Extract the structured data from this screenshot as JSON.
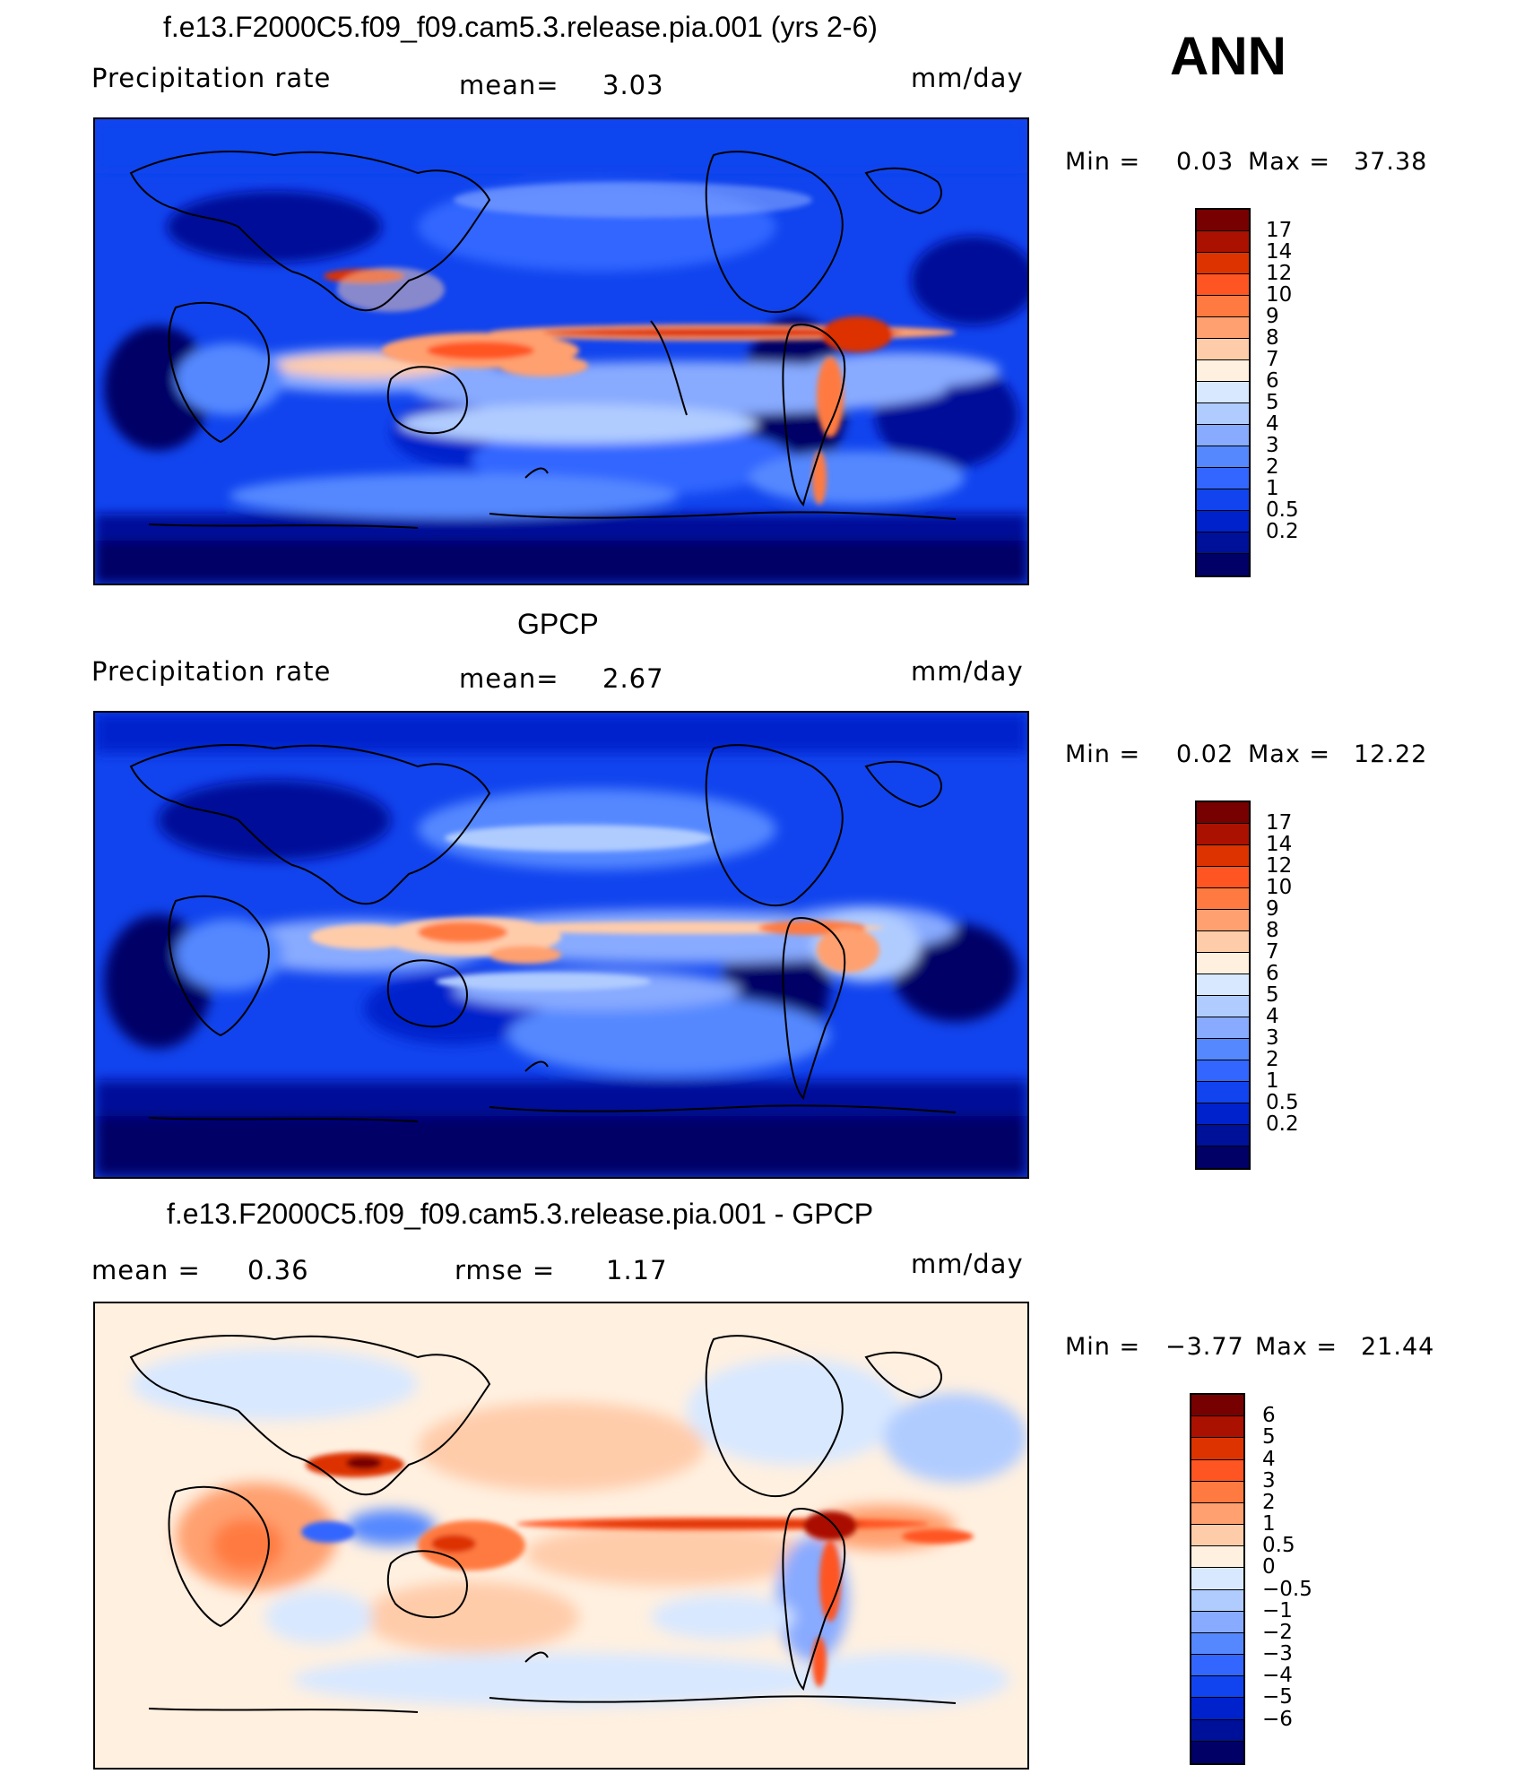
{
  "season": "ANN",
  "panels": [
    {
      "title": "f.e13.F2000C5.f09_f09.cam5.3.release.pia.001 (yrs 2-6)",
      "left_label": "Precipitation  rate",
      "center_label": "mean=",
      "center_value": "3.03",
      "right_label": "mm/day",
      "min_label": "Min  =",
      "min_value": "0.03",
      "max_label": "Max  =",
      "max_value": "37.38",
      "colorbar_labels": [
        "17",
        "14",
        "12",
        "10",
        "9",
        "8",
        "7",
        "6",
        "5",
        "4",
        "3",
        "2",
        "1",
        "0.5",
        "0.2"
      ]
    },
    {
      "title": "GPCP",
      "left_label": "Precipitation  rate",
      "center_label": "mean=",
      "center_value": "2.67",
      "right_label": "mm/day",
      "min_label": "Min  =",
      "min_value": "0.02",
      "max_label": "Max  =",
      "max_value": "12.22",
      "colorbar_labels": [
        "17",
        "14",
        "12",
        "10",
        "9",
        "8",
        "7",
        "6",
        "5",
        "4",
        "3",
        "2",
        "1",
        "0.5",
        "0.2"
      ]
    },
    {
      "title": "f.e13.F2000C5.f09_f09.cam5.3.release.pia.001 - GPCP",
      "left_label": "mean  =",
      "left_value": "0.36",
      "center_label": "rmse  =",
      "center_value": "1.17",
      "right_label": "mm/day",
      "min_label": "Min  =",
      "min_value": "−3.77",
      "max_label": "Max  =",
      "max_value": "21.44",
      "colorbar_labels": [
        "6",
        "5",
        "4",
        "3",
        "2",
        "1",
        "0.5",
        "0",
        "−0.5",
        "−1",
        "−2",
        "−3",
        "−4",
        "−5",
        "−6"
      ]
    }
  ],
  "colors": {
    "precip_scale": [
      "#000066",
      "#001199",
      "#0022cc",
      "#1144ee",
      "#3366ff",
      "#5588ff",
      "#88aaff",
      "#b0ccff",
      "#d8e8ff",
      "#fff0e0",
      "#ffccaa",
      "#ffa070",
      "#ff7a40",
      "#ff5522",
      "#dd3300",
      "#aa1100",
      "#770000"
    ],
    "diff_scale": [
      "#000066",
      "#001199",
      "#0022cc",
      "#1144ee",
      "#3366ff",
      "#5588ff",
      "#88aaff",
      "#b0ccff",
      "#d8e8ff",
      "#fff0e0",
      "#ffccaa",
      "#ffa070",
      "#ff7a40",
      "#ff5522",
      "#dd3300",
      "#aa1100",
      "#770000"
    ]
  }
}
